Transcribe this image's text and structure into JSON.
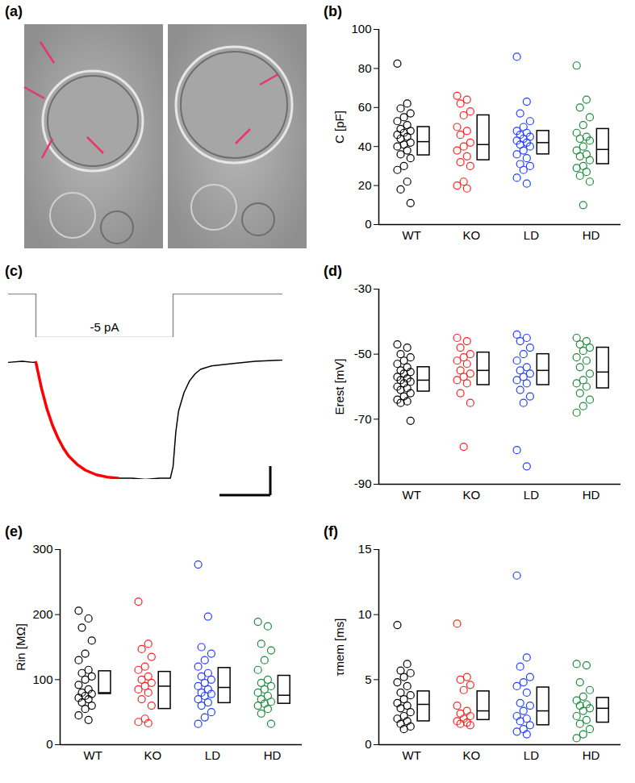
{
  "image_panel": {
    "panel": "(a)"
  },
  "chart_data": [
    {
      "panel": "(b)",
      "type": "scatter",
      "marker": "circle",
      "y_label": "C [pF]",
      "categories": [
        "WT",
        "KO",
        "LD",
        "HD"
      ],
      "colors": [
        "#000000",
        "#ff2020",
        "#1f3fff",
        "#1a8a3a"
      ],
      "ylim": [
        0,
        100
      ],
      "yticks": [
        0,
        20,
        40,
        60,
        80,
        100
      ],
      "values": [
        [
          82.5,
          62,
          59.5,
          57,
          55,
          53,
          51,
          49,
          48,
          47,
          46,
          45,
          44,
          42,
          41,
          40,
          38,
          36,
          34,
          30,
          28,
          22,
          18,
          11
        ],
        [
          66,
          64,
          62,
          58,
          56,
          50,
          48,
          46,
          42,
          40,
          38,
          35,
          32,
          30,
          22,
          20,
          18.5
        ],
        [
          86,
          63,
          57,
          53,
          50,
          48,
          47,
          46,
          45,
          44,
          43,
          42,
          41,
          40,
          38,
          36,
          34,
          31,
          30,
          28,
          24,
          21
        ],
        [
          81.5,
          64,
          60,
          55,
          51,
          47,
          45,
          44,
          43,
          40,
          38,
          36,
          35,
          33,
          30,
          29,
          27,
          25,
          22,
          10
        ]
      ],
      "boxes": [
        {
          "q1": 35.5,
          "median": 42.5,
          "q3": 50
        },
        {
          "q1": 33,
          "median": 41,
          "q3": 56
        },
        {
          "q1": 36,
          "median": 42,
          "q3": 48
        },
        {
          "q1": 31,
          "median": 38.5,
          "q3": 49
        }
      ]
    },
    {
      "panel": "(c)",
      "type": "line",
      "tick_labels": false,
      "stimulus": {
        "label": "-5 pA",
        "color": "#909090",
        "x": [
          0,
          10,
          10,
          60,
          60,
          100
        ],
        "values": [
          0,
          0,
          -5,
          -5,
          0,
          0
        ]
      },
      "trace": {
        "color": "#000000",
        "x": [
          0,
          5,
          9,
          10,
          12,
          14,
          16,
          18,
          20,
          22,
          25,
          28,
          32,
          36,
          40,
          45,
          50,
          55,
          58,
          59,
          60,
          61,
          62,
          64,
          66,
          68,
          70,
          74,
          78,
          82,
          90,
          100
        ],
        "values": [
          0,
          0.01,
          0,
          0,
          -0.22,
          -0.4,
          -0.54,
          -0.65,
          -0.74,
          -0.81,
          -0.88,
          -0.93,
          -0.97,
          -0.99,
          -1,
          -1,
          -1.01,
          -1,
          -1,
          -1,
          -0.9,
          -0.6,
          -0.42,
          -0.26,
          -0.16,
          -0.1,
          -0.06,
          -0.03,
          -0.02,
          -0.01,
          0.01,
          0.02
        ]
      },
      "fit": {
        "color": "#ff0000",
        "x": [
          10,
          12,
          14,
          16,
          18,
          20,
          22,
          25,
          28,
          32,
          36,
          40
        ],
        "values": [
          0,
          -0.22,
          -0.4,
          -0.54,
          -0.65,
          -0.74,
          -0.81,
          -0.88,
          -0.93,
          -0.97,
          -0.99,
          -1
        ]
      }
    },
    {
      "panel": "(d)",
      "type": "scatter",
      "marker": "circle",
      "y_label": "Erest [mV]",
      "categories": [
        "WT",
        "KO",
        "LD",
        "HD"
      ],
      "colors": [
        "#000000",
        "#ff2020",
        "#1f3fff",
        "#1a8a3a"
      ],
      "ylim": [
        -90,
        -30
      ],
      "yticks": [
        -90,
        -70,
        -50,
        -30
      ],
      "values": [
        [
          -47,
          -48,
          -50,
          -51,
          -52,
          -53,
          -54,
          -55,
          -55.5,
          -56,
          -57,
          -57.5,
          -58,
          -58.5,
          -59,
          -60,
          -60.5,
          -61,
          -62,
          -63,
          -64,
          -64.5,
          -65,
          -70.5
        ],
        [
          -45,
          -46,
          -48,
          -50,
          -51,
          -52,
          -53,
          -55,
          -56,
          -57,
          -58,
          -59,
          -62,
          -65,
          -78.5
        ],
        [
          -44,
          -45,
          -46,
          -48,
          -50,
          -52,
          -54,
          -55,
          -56,
          -57,
          -58,
          -59,
          -61,
          -63,
          -65,
          -79.5,
          -84.5
        ],
        [
          -45,
          -46,
          -47,
          -48,
          -49,
          -51,
          -52,
          -54,
          -56,
          -58,
          -59,
          -60,
          -62,
          -64,
          -66,
          -68
        ]
      ],
      "boxes": [
        {
          "q1": -61.5,
          "median": -58,
          "q3": -54
        },
        {
          "q1": -59.5,
          "median": -55,
          "q3": -49.5
        },
        {
          "q1": -59.5,
          "median": -55,
          "q3": -50
        },
        {
          "q1": -60.5,
          "median": -55.5,
          "q3": -48
        }
      ]
    },
    {
      "panel": "(e)",
      "type": "scatter",
      "marker": "circle",
      "y_label": "Rin [MΩ]",
      "categories": [
        "WT",
        "KO",
        "LD",
        "HD"
      ],
      "colors": [
        "#000000",
        "#ff2020",
        "#1f3fff",
        "#1a8a3a"
      ],
      "ylim": [
        0,
        300
      ],
      "yticks": [
        0,
        100,
        200,
        300
      ],
      "values": [
        [
          206,
          194,
          180,
          160,
          140,
          130,
          115,
          110,
          105,
          100,
          92,
          85,
          80,
          78,
          75,
          72,
          70,
          65,
          60,
          55,
          45,
          38
        ],
        [
          220,
          155,
          147,
          135,
          120,
          115,
          105,
          100,
          95,
          90,
          85,
          80,
          70,
          60,
          40,
          35,
          33
        ],
        [
          277,
          197,
          150,
          140,
          130,
          120,
          110,
          105,
          100,
          95,
          90,
          85,
          80,
          78,
          75,
          70,
          65,
          60,
          50,
          42,
          32
        ],
        [
          189,
          182,
          155,
          145,
          130,
          115,
          100,
          95,
          90,
          85,
          80,
          75,
          70,
          66,
          63,
          60,
          55,
          48,
          32
        ]
      ],
      "boxes": [
        {
          "q1": 78,
          "median": 80,
          "q3": 113
        },
        {
          "q1": 55,
          "median": 90,
          "q3": 112
        },
        {
          "q1": 64,
          "median": 88,
          "q3": 118
        },
        {
          "q1": 63,
          "median": 76,
          "q3": 106
        }
      ]
    },
    {
      "panel": "(f)",
      "type": "scatter",
      "marker": "circle",
      "y_label": "τmem [ms]",
      "categories": [
        "WT",
        "KO",
        "LD",
        "HD"
      ],
      "colors": [
        "#000000",
        "#ff2020",
        "#1f3fff",
        "#1a8a3a"
      ],
      "ylim": [
        0,
        15
      ],
      "yticks": [
        0,
        5,
        10,
        15
      ],
      "values": [
        [
          9.2,
          6.2,
          5.7,
          5.5,
          5.2,
          4.8,
          4.5,
          4.0,
          3.8,
          3.5,
          3.2,
          3.0,
          2.8,
          2.5,
          2.2,
          2.0,
          1.8,
          1.6,
          1.4,
          1.2
        ],
        [
          9.3,
          5.2,
          5.0,
          4.6,
          4.2,
          3.0,
          2.6,
          2.4,
          2.2,
          2.0,
          1.8,
          1.7,
          1.6,
          1.5
        ],
        [
          13.0,
          6.7,
          6.0,
          5.2,
          4.8,
          4.5,
          4.0,
          3.2,
          3.0,
          2.6,
          2.2,
          2.0,
          1.8,
          1.5,
          1.2,
          1.0,
          0.8
        ],
        [
          6.2,
          6.1,
          4.8,
          4.2,
          3.7,
          3.4,
          3.1,
          3.0,
          2.8,
          2.6,
          2.2,
          1.9,
          1.6,
          1.2,
          0.8,
          0.5
        ]
      ],
      "boxes": [
        {
          "q1": 1.8,
          "median": 3.1,
          "q3": 4.1
        },
        {
          "q1": 1.9,
          "median": 2.6,
          "q3": 4.1
        },
        {
          "q1": 1.5,
          "median": 2.6,
          "q3": 4.4
        },
        {
          "q1": 1.7,
          "median": 2.8,
          "q3": 3.6
        }
      ]
    }
  ]
}
